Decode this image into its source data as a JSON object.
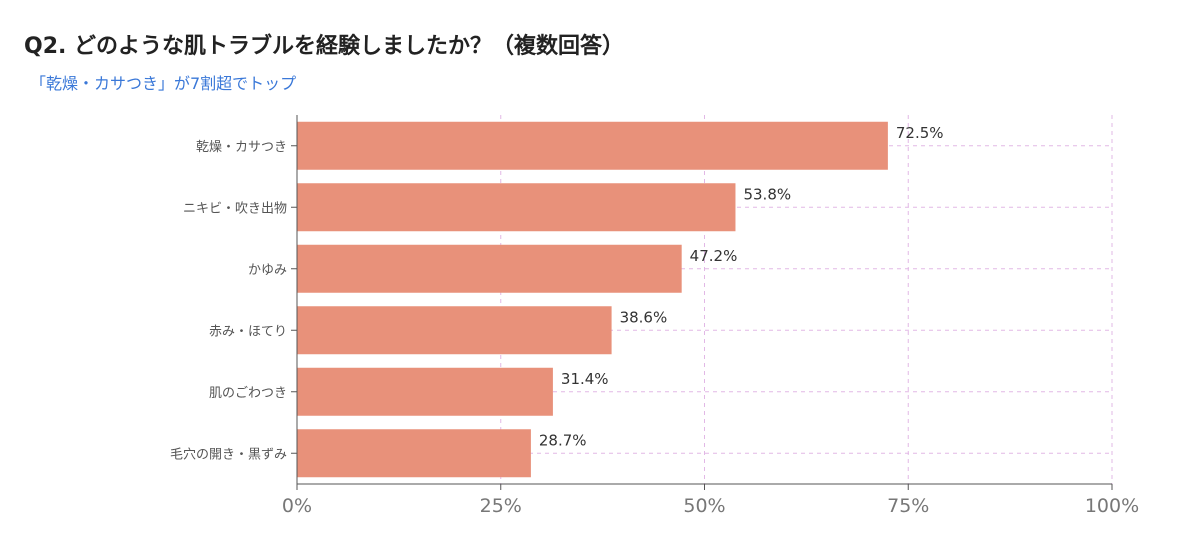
{
  "header": {
    "title": "Q2. どのような肌トラブルを経験しましたか？（複数回答）",
    "subtitle": "「乾燥・カサつき」が7割超でトップ"
  },
  "colors": {
    "bar": "#e8917a",
    "grid": "#e2b8e6",
    "axis": "#555555",
    "subtitle": "#3a78d8"
  },
  "chart_data": {
    "type": "bar",
    "orientation": "horizontal",
    "categories": [
      "乾燥・カサつき",
      "ニキビ・吹き出物",
      "かゆみ",
      "赤み・ほてり",
      "肌のごわつき",
      "毛穴の開き・黒ずみ"
    ],
    "values": [
      72.5,
      53.8,
      47.2,
      38.6,
      31.4,
      28.7
    ],
    "value_labels": [
      "72.5%",
      "53.8%",
      "47.2%",
      "38.6%",
      "31.4%",
      "28.7%"
    ],
    "xlim": [
      0,
      100
    ],
    "xticks": [
      0,
      25,
      50,
      75,
      100
    ],
    "xtick_labels": [
      "0%",
      "25%",
      "50%",
      "75%",
      "100%"
    ],
    "grid": true,
    "grid_style": "dashed"
  }
}
